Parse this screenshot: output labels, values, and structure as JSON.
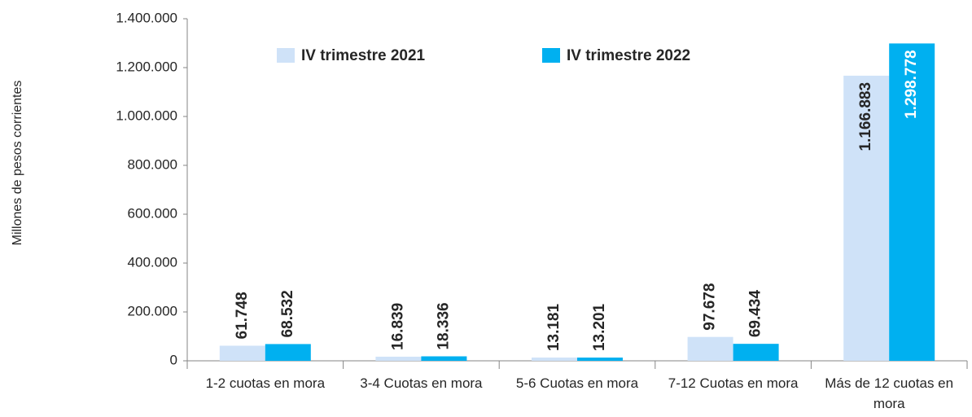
{
  "chart_data": {
    "type": "bar",
    "y_label": "Millones de pesos corrientes",
    "categories": [
      "1-2 cuotas en mora",
      "3-4 Cuotas en mora",
      "5-6 Cuotas en mora",
      "7-12 Cuotas en mora",
      "Más de 12 cuotas en mora"
    ],
    "series": [
      {
        "name": "IV trimestre 2021",
        "color": "#cfe2f8",
        "values": [
          61748,
          16839,
          13181,
          97678,
          1166883
        ],
        "value_labels": [
          "61.748",
          "16.839",
          "13.181",
          "97.678",
          "1.166.883"
        ]
      },
      {
        "name": "IV trimestre 2022",
        "color": "#00b0f0",
        "values": [
          68532,
          18336,
          13201,
          69434,
          1298778
        ],
        "value_labels": [
          "68.532",
          "18.336",
          "13.201",
          "69.434",
          "1.298.778"
        ]
      }
    ],
    "ylim": [
      0,
      1400000
    ],
    "yticks": [
      0,
      {
        "value": 200000,
        "label": "200.000"
      },
      {
        "value": 400000,
        "label": "400.000"
      },
      {
        "value": 600000,
        "label": "600.000"
      },
      {
        "value": 800000,
        "label": "800.000"
      },
      {
        "value": 1000000,
        "label": "1.000.000"
      },
      {
        "value": 1200000,
        "label": "1.200.000"
      },
      {
        "value": 1400000,
        "label": "1.400.000"
      }
    ],
    "legend": "top",
    "grid": false
  }
}
